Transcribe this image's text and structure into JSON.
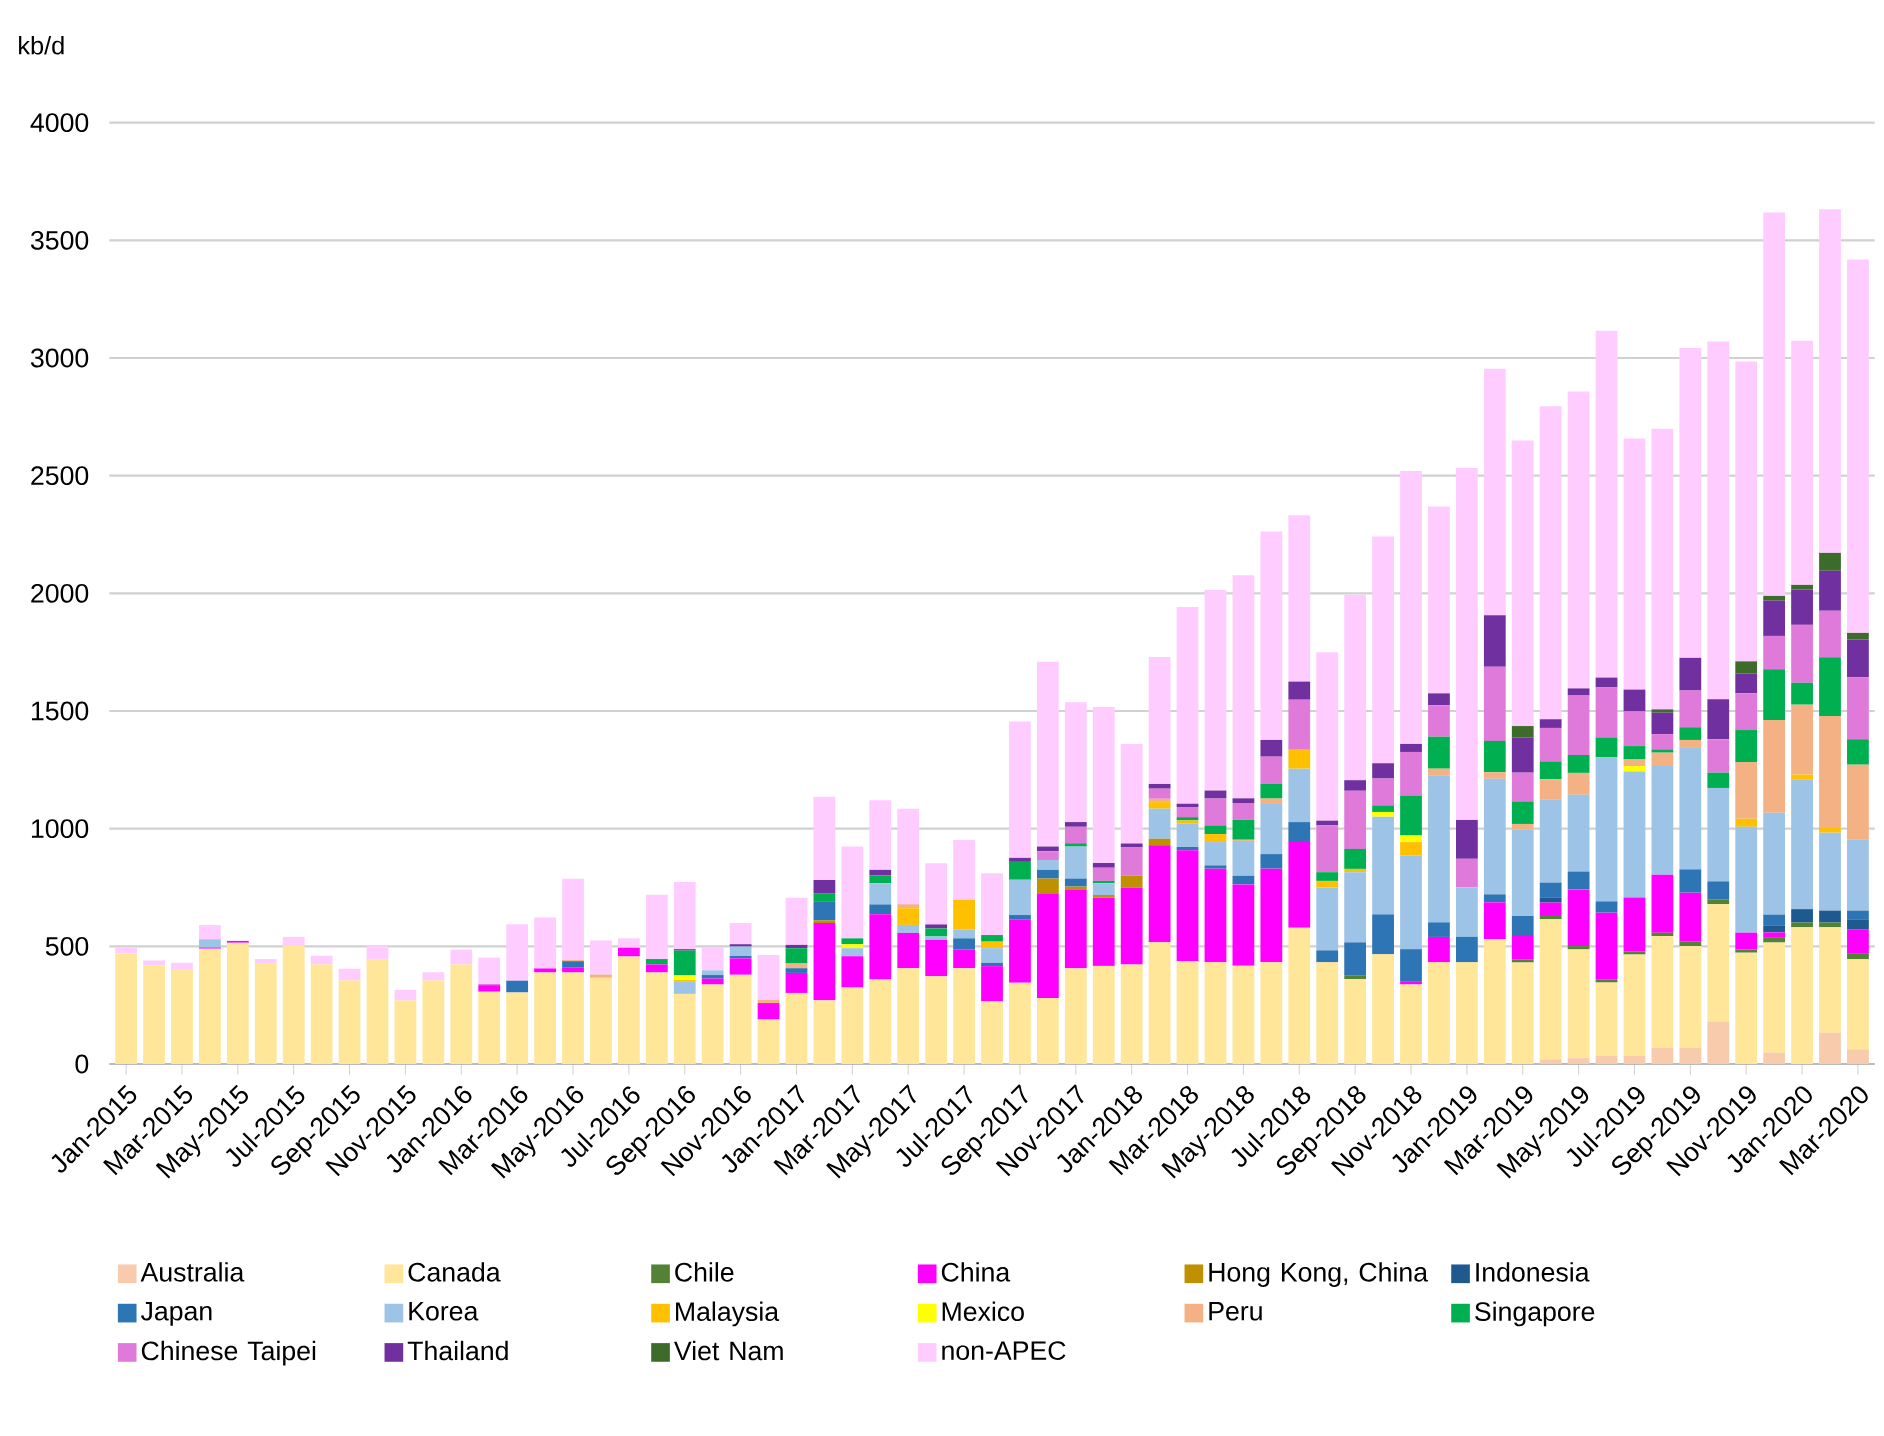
{
  "chart_data": {
    "type": "bar",
    "stacked": true,
    "ylabel": "kb/d",
    "grid": "y",
    "legend": "bottom",
    "ylim": [
      0,
      4000
    ],
    "yticks": [
      0,
      500,
      1000,
      1500,
      2000,
      2500,
      3000,
      3500,
      4000
    ],
    "categories": [
      "Jan-2015",
      null,
      "Mar-2015",
      null,
      "May-2015",
      null,
      "Jul-2015",
      null,
      "Sep-2015",
      null,
      "Nov-2015",
      null,
      "Jan-2016",
      null,
      "Mar-2016",
      null,
      "May-2016",
      null,
      "Jul-2016",
      null,
      "Sep-2016",
      null,
      "Nov-2016",
      null,
      "Jan-2017",
      null,
      "Mar-2017",
      null,
      "May-2017",
      null,
      "Jul-2017",
      null,
      "Sep-2017",
      null,
      "Nov-2017",
      null,
      "Jan-2018",
      null,
      "Mar-2018",
      null,
      "May-2018",
      null,
      "Jul-2018",
      null,
      "Sep-2018",
      null,
      "Nov-2018",
      null,
      "Jan-2019",
      null,
      "Mar-2019",
      null,
      "May-2019",
      null,
      "Jul-2019",
      null,
      "Sep-2019",
      null,
      "Nov-2019",
      null,
      "Jan-2020",
      null,
      "Mar-2020"
    ],
    "series": [
      {
        "name": "Australia",
        "color": "#f8cbad",
        "values": [
          0,
          0,
          0,
          0,
          0,
          0,
          0,
          0,
          0,
          0,
          0,
          0,
          0,
          0,
          0,
          0,
          0,
          0,
          0,
          0,
          0,
          0,
          0,
          0,
          0,
          0,
          0,
          0,
          0,
          0,
          0,
          0,
          0,
          0,
          0,
          0,
          0,
          0,
          0,
          0,
          0,
          0,
          0,
          0,
          0,
          0,
          0,
          0,
          0,
          0,
          0,
          20,
          25,
          34,
          34,
          68,
          68,
          181,
          0,
          48,
          0,
          133,
          62
        ]
      },
      {
        "name": "Canada",
        "color": "#ffe699",
        "values": [
          470,
          420,
          400,
          490,
          515,
          426,
          505,
          423,
          355,
          443,
          270,
          355,
          423,
          307,
          304,
          389,
          389,
          366,
          457,
          389,
          298,
          338,
          379,
          189,
          302,
          271,
          325,
          359,
          407,
          373,
          407,
          266,
          345,
          280,
          407,
          415,
          423,
          517,
          437,
          432,
          417,
          432,
          579,
          432,
          361,
          466,
          338,
          432,
          432,
          531,
          431,
          595,
          462,
          312,
          431,
          476,
          433,
          499,
          473,
          468,
          581,
          448,
          383
        ]
      },
      {
        "name": "Chile",
        "color": "#548235",
        "values": [
          0,
          0,
          0,
          0,
          0,
          0,
          0,
          0,
          0,
          0,
          0,
          0,
          0,
          0,
          0,
          0,
          0,
          0,
          0,
          0,
          0,
          0,
          0,
          0,
          0,
          0,
          0,
          0,
          0,
          0,
          0,
          0,
          0,
          0,
          0,
          5,
          0,
          0,
          0,
          0,
          0,
          0,
          0,
          0,
          14,
          0,
          0,
          0,
          0,
          0,
          14,
          14,
          14,
          14,
          14,
          14,
          20,
          20,
          14,
          20,
          20,
          20,
          23
        ]
      },
      {
        "name": "China",
        "color": "#ff00ff",
        "values": [
          0,
          0,
          0,
          5,
          8,
          0,
          0,
          0,
          0,
          0,
          0,
          0,
          0,
          28,
          0,
          17,
          20,
          0,
          37,
          34,
          0,
          25,
          70,
          70,
          85,
          328,
          133,
          277,
          150,
          155,
          79,
          150,
          268,
          446,
          333,
          288,
          327,
          412,
          471,
          398,
          346,
          398,
          364,
          0,
          0,
          0,
          14,
          108,
          0,
          156,
          99,
          57,
          241,
          283,
          229,
          246,
          207,
          0,
          71,
          23,
          0,
          0,
          105
        ]
      },
      {
        "name": "Hong Kong, China",
        "color": "#bf9000",
        "values": [
          0,
          0,
          0,
          0,
          0,
          0,
          0,
          0,
          0,
          0,
          0,
          0,
          0,
          0,
          0,
          0,
          0,
          0,
          0,
          0,
          0,
          0,
          0,
          0,
          0,
          11,
          0,
          0,
          0,
          0,
          0,
          0,
          0,
          62,
          14,
          10,
          51,
          28,
          0,
          0,
          0,
          0,
          0,
          0,
          0,
          0,
          0,
          0,
          0,
          0,
          0,
          0,
          0,
          0,
          0,
          0,
          0,
          0,
          0,
          0,
          0,
          0,
          0
        ]
      },
      {
        "name": "Indonesia",
        "color": "#1f5a8f",
        "values": [
          0,
          0,
          0,
          0,
          0,
          0,
          0,
          0,
          0,
          0,
          0,
          0,
          0,
          0,
          0,
          0,
          0,
          0,
          0,
          0,
          0,
          0,
          0,
          0,
          0,
          0,
          0,
          0,
          0,
          0,
          0,
          0,
          0,
          0,
          0,
          0,
          0,
          0,
          0,
          0,
          0,
          0,
          0,
          0,
          0,
          0,
          0,
          0,
          0,
          0,
          0,
          20,
          0,
          0,
          0,
          0,
          0,
          0,
          0,
          28,
          57,
          51,
          42
        ]
      },
      {
        "name": "Japan",
        "color": "#2e75b6",
        "values": [
          0,
          0,
          0,
          0,
          0,
          0,
          0,
          0,
          0,
          0,
          0,
          0,
          0,
          0,
          50,
          0,
          28,
          0,
          0,
          0,
          0,
          15,
          10,
          0,
          20,
          79,
          0,
          42,
          0,
          0,
          48,
          14,
          20,
          37,
          34,
          0,
          0,
          0,
          14,
          14,
          37,
          62,
          85,
          51,
          142,
          170,
          136,
          62,
          108,
          34,
          85,
          65,
          76,
          48,
          0,
          0,
          99,
          76,
          0,
          48,
          0,
          0,
          37
        ]
      },
      {
        "name": "Korea",
        "color": "#9dc3e6",
        "values": [
          0,
          0,
          0,
          35,
          0,
          0,
          0,
          0,
          0,
          0,
          0,
          0,
          0,
          0,
          0,
          0,
          0,
          0,
          0,
          0,
          54,
          20,
          40,
          0,
          0,
          0,
          34,
          90,
          34,
          14,
          37,
          62,
          150,
          42,
          136,
          50,
          0,
          128,
          99,
          99,
          148,
          213,
          227,
          267,
          298,
          415,
          398,
          625,
          210,
          491,
          368,
          354,
          326,
          612,
          535,
          462,
          516,
          397,
          450,
          433,
          552,
          331,
          303
        ]
      },
      {
        "name": "Malaysia",
        "color": "#ffc000",
        "values": [
          0,
          0,
          0,
          0,
          0,
          0,
          0,
          0,
          0,
          0,
          0,
          0,
          0,
          0,
          0,
          0,
          0,
          0,
          0,
          0,
          5,
          0,
          0,
          0,
          0,
          0,
          0,
          0,
          71,
          0,
          127,
          28,
          0,
          0,
          0,
          0,
          0,
          28,
          14,
          34,
          0,
          0,
          80,
          28,
          14,
          0,
          57,
          0,
          0,
          0,
          0,
          0,
          0,
          0,
          0,
          0,
          0,
          0,
          34,
          0,
          20,
          20,
          0
        ]
      },
      {
        "name": "Mexico",
        "color": "#ffff00",
        "values": [
          0,
          0,
          0,
          0,
          0,
          0,
          0,
          0,
          0,
          0,
          0,
          0,
          0,
          0,
          0,
          0,
          0,
          0,
          0,
          0,
          20,
          0,
          0,
          0,
          0,
          0,
          17,
          0,
          0,
          0,
          0,
          0,
          0,
          0,
          0,
          0,
          0,
          0,
          0,
          0,
          0,
          0,
          0,
          0,
          0,
          20,
          28,
          0,
          0,
          0,
          0,
          0,
          0,
          0,
          23,
          0,
          0,
          0,
          0,
          0,
          0,
          0,
          0
        ]
      },
      {
        "name": "Peru",
        "color": "#f4b183",
        "values": [
          0,
          0,
          0,
          0,
          0,
          0,
          0,
          0,
          0,
          0,
          0,
          0,
          0,
          0,
          0,
          0,
          5,
          14,
          0,
          0,
          0,
          0,
          0,
          14,
          20,
          0,
          0,
          0,
          17,
          0,
          0,
          0,
          0,
          0,
          0,
          0,
          0,
          14,
          0,
          0,
          5,
          23,
          0,
          0,
          0,
          0,
          0,
          28,
          0,
          28,
          23,
          85,
          93,
          0,
          28,
          57,
          34,
          0,
          241,
          394,
          297,
          476,
          317
        ]
      },
      {
        "name": "Singapore",
        "color": "#00b050",
        "values": [
          0,
          0,
          0,
          0,
          0,
          0,
          0,
          0,
          0,
          0,
          0,
          0,
          0,
          0,
          0,
          0,
          0,
          0,
          0,
          23,
          105,
          0,
          0,
          0,
          65,
          37,
          25,
          34,
          0,
          34,
          0,
          28,
          76,
          0,
          14,
          10,
          0,
          0,
          14,
          37,
          85,
          62,
          0,
          37,
          85,
          28,
          170,
          136,
          0,
          133,
          96,
          76,
          76,
          85,
          57,
          14,
          54,
          65,
          136,
          215,
          93,
          249,
          108
        ]
      },
      {
        "name": "Chinese Taipei",
        "color": "#e07ada",
        "values": [
          0,
          0,
          0,
          0,
          0,
          0,
          0,
          0,
          0,
          0,
          0,
          0,
          0,
          5,
          0,
          0,
          0,
          0,
          0,
          0,
          0,
          0,
          0,
          0,
          0,
          0,
          0,
          0,
          0,
          0,
          0,
          0,
          0,
          37,
          70,
          56,
          119,
          43,
          43,
          114,
          71,
          116,
          213,
          199,
          247,
          114,
          185,
          133,
          122,
          315,
          122,
          142,
          255,
          212,
          147,
          65,
          156,
          142,
          156,
          142,
          246,
          198,
          263
        ]
      },
      {
        "name": "Thailand",
        "color": "#7030a0",
        "values": [
          0,
          0,
          0,
          0,
          0,
          0,
          0,
          0,
          0,
          0,
          0,
          0,
          0,
          0,
          0,
          0,
          0,
          0,
          0,
          0,
          6,
          0,
          10,
          0,
          14,
          56,
          0,
          23,
          0,
          17,
          0,
          0,
          17,
          20,
          20,
          20,
          17,
          20,
          14,
          34,
          20,
          71,
          77,
          20,
          45,
          65,
          34,
          51,
          165,
          219,
          150,
          37,
          28,
          42,
          93,
          91,
          139,
          170,
          85,
          150,
          150,
          170,
          161
        ]
      },
      {
        "name": "Viet Nam",
        "color": "#3d6b2a",
        "values": [
          0,
          0,
          0,
          0,
          0,
          0,
          0,
          0,
          0,
          0,
          0,
          0,
          0,
          0,
          0,
          0,
          0,
          0,
          0,
          0,
          0,
          0,
          0,
          0,
          0,
          0,
          0,
          0,
          0,
          0,
          0,
          0,
          0,
          0,
          0,
          0,
          0,
          0,
          0,
          0,
          0,
          0,
          0,
          0,
          0,
          0,
          0,
          0,
          0,
          0,
          48,
          0,
          0,
          0,
          0,
          14,
          0,
          0,
          51,
          20,
          20,
          76,
          28
        ]
      },
      {
        "name": "non-APEC",
        "color": "#ffccff",
        "values": [
          25,
          20,
          30,
          60,
          0,
          20,
          35,
          37,
          50,
          60,
          45,
          35,
          63,
          112,
          240,
          216,
          345,
          145,
          40,
          273,
          285,
          100,
          90,
          190,
          200,
          354,
          390,
          296,
          406,
          260,
          254,
          263,
          579,
          785,
          509,
          663,
          423,
          540,
          836,
          852,
          948,
          886,
          707,
          716,
          788,
          963,
          1160,
          794,
          1496,
          1047,
          1213,
          1330,
          1262,
          1474,
          1067,
          1192,
          1317,
          1520,
          1274,
          1629,
          1037,
          1460,
          1587
        ]
      }
    ]
  }
}
